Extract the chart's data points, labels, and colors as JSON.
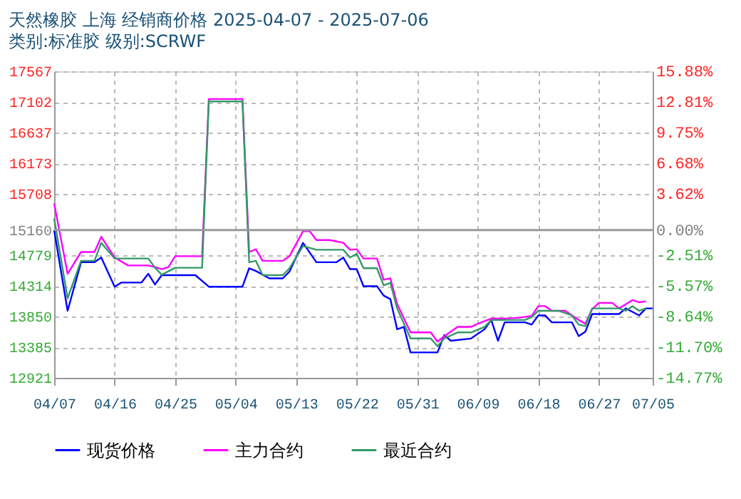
{
  "chart_data": {
    "type": "line",
    "title": "天然橡胶 上海 经销商价格 2025-04-07 - 2025-07-06",
    "subtitle": "类别:标准胶 级别:SCRWF",
    "xlim": [
      "2025-04-07",
      "2025-07-05"
    ],
    "xticks": [
      {
        "value": "2025-04-07",
        "label": "04/07"
      },
      {
        "value": "2025-04-16",
        "label": "04/16"
      },
      {
        "value": "2025-04-25",
        "label": "04/25"
      },
      {
        "value": "2025-05-04",
        "label": "05/04"
      },
      {
        "value": "2025-05-13",
        "label": "05/13"
      },
      {
        "value": "2025-05-22",
        "label": "05/22"
      },
      {
        "value": "2025-05-31",
        "label": "05/31"
      },
      {
        "value": "2025-06-09",
        "label": "06/09"
      },
      {
        "value": "2025-06-18",
        "label": "06/18"
      },
      {
        "value": "2025-06-27",
        "label": "06/27"
      },
      {
        "value": "2025-07-05",
        "label": "07/05"
      }
    ],
    "ylim": [
      12921,
      17567
    ],
    "yticks": [
      12921,
      13385,
      13850,
      14314,
      14779,
      15160,
      15708,
      16173,
      16637,
      17102,
      17567
    ],
    "y2lim": [
      -14.77,
      15.88
    ],
    "y2ticks": [
      {
        "value": -14.77,
        "label": "-14.77%"
      },
      {
        "value": -11.7,
        "label": "-11.70%"
      },
      {
        "value": -8.64,
        "label": "-8.64%"
      },
      {
        "value": -5.57,
        "label": "-5.57%"
      },
      {
        "value": -2.51,
        "label": "-2.51%"
      },
      {
        "value": 0,
        "label": "0.00%"
      },
      {
        "value": 3.62,
        "label": "3.62%"
      },
      {
        "value": 6.68,
        "label": "6.68%"
      },
      {
        "value": 9.75,
        "label": "9.75%"
      },
      {
        "value": 12.81,
        "label": "12.81%"
      },
      {
        "value": 15.88,
        "label": "15.88%"
      }
    ],
    "grid": true,
    "legend": "bottom",
    "marker": "none",
    "line_style": "solid",
    "ref_lines": [
      {
        "axis": "y",
        "value": 15160,
        "color": "#999999"
      }
    ],
    "series": [
      {
        "name": "现货价格",
        "color": "#0000ff",
        "x": [
          "2025-04-07",
          "2025-04-09",
          "2025-04-11",
          "2025-04-13",
          "2025-04-14",
          "2025-04-16",
          "2025-04-17",
          "2025-04-20",
          "2025-04-21",
          "2025-04-22",
          "2025-04-23",
          "2025-04-28",
          "2025-04-30",
          "2025-05-05",
          "2025-05-06",
          "2025-05-07",
          "2025-05-09",
          "2025-05-11",
          "2025-05-12",
          "2025-05-14",
          "2025-05-16",
          "2025-05-19",
          "2025-05-20",
          "2025-05-21",
          "2025-05-22",
          "2025-05-23",
          "2025-05-25",
          "2025-05-26",
          "2025-05-27",
          "2025-05-28",
          "2025-05-29",
          "2025-05-30",
          "2025-06-03",
          "2025-06-04",
          "2025-06-05",
          "2025-06-08",
          "2025-06-10",
          "2025-06-11",
          "2025-06-12",
          "2025-06-13",
          "2025-06-16",
          "2025-06-17",
          "2025-06-18",
          "2025-06-19",
          "2025-06-20",
          "2025-06-23",
          "2025-06-24",
          "2025-06-25",
          "2025-06-26",
          "2025-06-30",
          "2025-07-01",
          "2025-07-02",
          "2025-07-03",
          "2025-07-04",
          "2025-07-05"
        ],
        "values": [
          15160,
          13937,
          14673,
          14673,
          14744,
          14302,
          14365,
          14365,
          14498,
          14336,
          14477,
          14477,
          14302,
          14302,
          14582,
          14540,
          14428,
          14428,
          14533,
          14967,
          14673,
          14673,
          14744,
          14568,
          14568,
          14309,
          14309,
          14168,
          14113,
          13657,
          13693,
          13306,
          13306,
          13567,
          13483,
          13517,
          13657,
          13798,
          13483,
          13762,
          13762,
          13727,
          13867,
          13867,
          13762,
          13762,
          13552,
          13620,
          13888,
          13888,
          13973,
          13920,
          13867,
          13973,
          13973
        ]
      },
      {
        "name": "主力合约",
        "color": "#ff00ff",
        "x": [
          "2025-04-07",
          "2025-04-09",
          "2025-04-11",
          "2025-04-13",
          "2025-04-14",
          "2025-04-16",
          "2025-04-18",
          "2025-04-21",
          "2025-04-22",
          "2025-04-23",
          "2025-04-24",
          "2025-04-25",
          "2025-04-28",
          "2025-04-29",
          "2025-04-30",
          "2025-05-05",
          "2025-05-06",
          "2025-05-07",
          "2025-05-08",
          "2025-05-11",
          "2025-05-12",
          "2025-05-14",
          "2025-05-15",
          "2025-05-16",
          "2025-05-18",
          "2025-05-20",
          "2025-05-21",
          "2025-05-22",
          "2025-05-23",
          "2025-05-25",
          "2025-05-26",
          "2025-05-27",
          "2025-05-28",
          "2025-05-30",
          "2025-06-02",
          "2025-06-03",
          "2025-06-04",
          "2025-06-06",
          "2025-06-08",
          "2025-06-09",
          "2025-06-11",
          "2025-06-13",
          "2025-06-15",
          "2025-06-17",
          "2025-06-18",
          "2025-06-19",
          "2025-06-20",
          "2025-06-22",
          "2025-06-24",
          "2025-06-25",
          "2025-06-26",
          "2025-06-27",
          "2025-06-29",
          "2025-06-30",
          "2025-07-02",
          "2025-07-03",
          "2025-07-04"
        ],
        "values": [
          15564,
          14498,
          14828,
          14828,
          15059,
          14744,
          14624,
          14624,
          14600,
          14568,
          14600,
          14765,
          14765,
          14765,
          17147,
          17147,
          14828,
          14870,
          14694,
          14694,
          14765,
          15143,
          15143,
          15009,
          15009,
          14967,
          14862,
          14870,
          14729,
          14729,
          14408,
          14430,
          14042,
          13609,
          13609,
          13469,
          13550,
          13693,
          13693,
          13740,
          13819,
          13819,
          13830,
          13860,
          14008,
          14008,
          13937,
          13937,
          13798,
          13741,
          13960,
          14057,
          14057,
          13973,
          14099,
          14065,
          14080
        ]
      },
      {
        "name": "最近合约",
        "color": "#339966",
        "x": [
          "2025-04-07",
          "2025-04-09",
          "2025-04-11",
          "2025-04-13",
          "2025-04-14",
          "2025-04-16",
          "2025-04-21",
          "2025-04-22",
          "2025-04-23",
          "2025-04-25",
          "2025-04-29",
          "2025-04-30",
          "2025-05-05",
          "2025-05-06",
          "2025-05-07",
          "2025-05-08",
          "2025-05-11",
          "2025-05-12",
          "2025-05-14",
          "2025-05-16",
          "2025-05-20",
          "2025-05-21",
          "2025-05-22",
          "2025-05-23",
          "2025-05-25",
          "2025-05-26",
          "2025-05-27",
          "2025-05-28",
          "2025-05-30",
          "2025-06-02",
          "2025-06-03",
          "2025-06-04",
          "2025-06-06",
          "2025-06-08",
          "2025-06-10",
          "2025-06-11",
          "2025-06-16",
          "2025-06-17",
          "2025-06-18",
          "2025-06-21",
          "2025-06-23",
          "2025-06-24",
          "2025-06-25",
          "2025-06-26",
          "2025-06-30",
          "2025-07-01",
          "2025-07-02",
          "2025-07-03",
          "2025-07-04"
        ],
        "values": [
          15339,
          14126,
          14694,
          14694,
          14967,
          14729,
          14729,
          14589,
          14483,
          14589,
          14589,
          17111,
          17111,
          14673,
          14694,
          14477,
          14477,
          14582,
          14918,
          14862,
          14862,
          14744,
          14800,
          14582,
          14582,
          14323,
          14360,
          13973,
          13518,
          13518,
          13399,
          13518,
          13609,
          13609,
          13693,
          13798,
          13798,
          13840,
          13937,
          13937,
          13867,
          13727,
          13706,
          13973,
          13973,
          13937,
          14008,
          13937,
          13973
        ]
      }
    ]
  }
}
